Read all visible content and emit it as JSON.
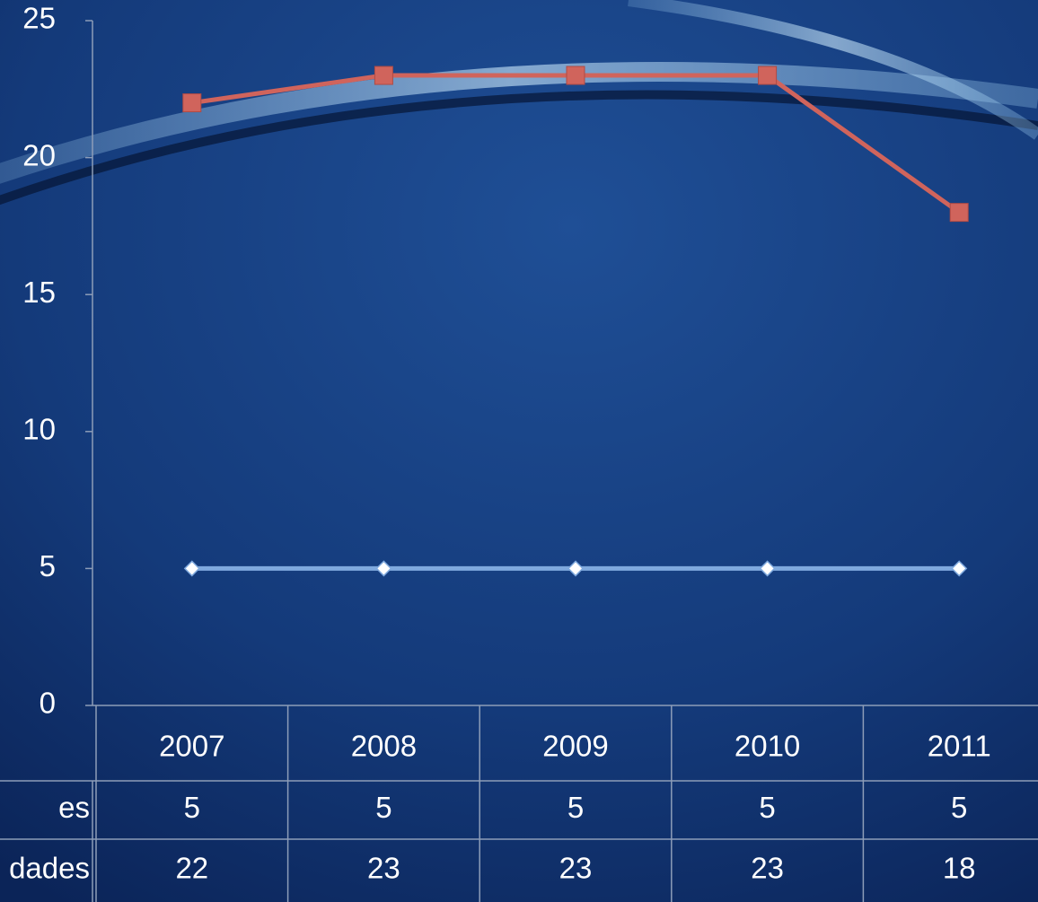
{
  "chart_data": {
    "type": "line",
    "categories": [
      "2007",
      "2008",
      "2009",
      "2010",
      "2011"
    ],
    "series": [
      {
        "name": "es",
        "color": "#7fa9de",
        "marker": "diamond",
        "values": [
          5,
          5,
          5,
          5,
          5
        ]
      },
      {
        "name": "dades",
        "color": "#d0645c",
        "marker": "square",
        "values": [
          22,
          23,
          23,
          23,
          18
        ]
      }
    ],
    "ylim": [
      0,
      25
    ],
    "yticks": [
      0,
      5,
      10,
      15,
      20,
      25
    ],
    "grid": false,
    "data_table": true
  }
}
